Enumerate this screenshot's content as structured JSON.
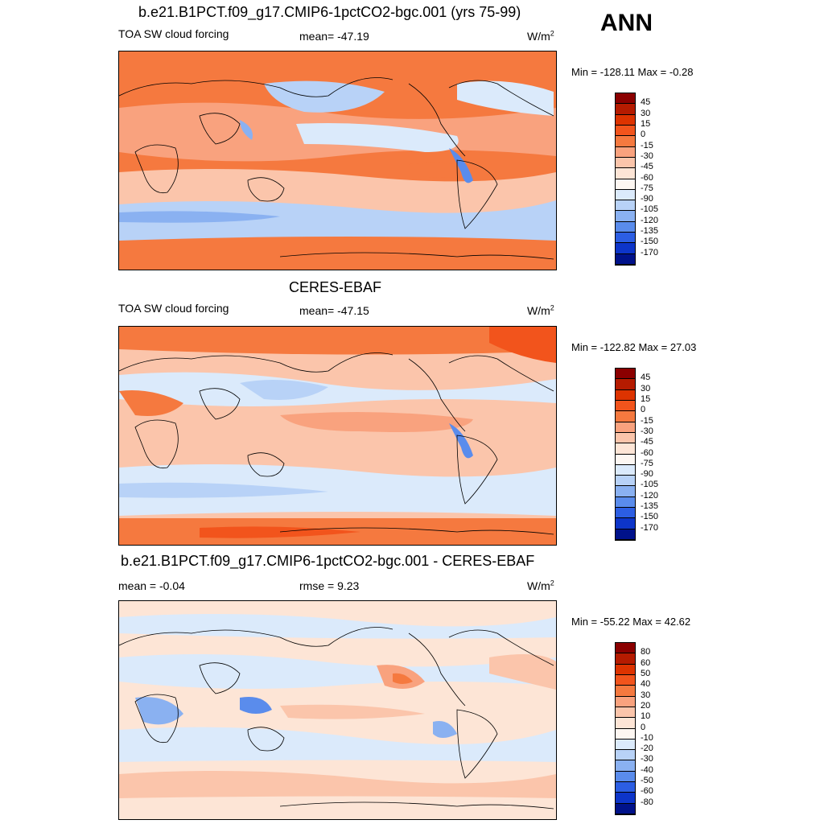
{
  "season": "ANN",
  "units_base": "W/m",
  "units_exp": "2",
  "panels": [
    {
      "title": "b.e21.B1PCT.f09_g17.CMIP6-1pctCO2-bgc.001 (yrs 75-99)",
      "left_label": "TOA SW cloud forcing",
      "center_label": "mean= -47.19",
      "minmax": "Min = -128.11 Max =  -0.28"
    },
    {
      "title": "CERES-EBAF",
      "left_label": "TOA SW cloud forcing",
      "center_label": "mean= -47.15",
      "minmax": "Min = -122.82 Max =  27.03"
    },
    {
      "title": "b.e21.B1PCT.f09_g17.CMIP6-1pctCO2-bgc.001 - CERES-EBAF",
      "left_label": "mean =  -0.04",
      "center_label": "rmse =   9.23",
      "minmax": "Min = -55.22 Max =  42.62"
    }
  ],
  "colorbars": {
    "field": {
      "labels": [
        "45",
        "30",
        "15",
        "0",
        "-15",
        "-30",
        "-45",
        "-60",
        "-75",
        "-90",
        "-105",
        "-120",
        "-135",
        "-150",
        "-170"
      ],
      "colors": [
        "#8b0000",
        "#b51b00",
        "#dd3300",
        "#f2541c",
        "#f5793f",
        "#f9a27e",
        "#fbc5ab",
        "#fde5d6",
        "#fdf7f2",
        "#dbeafb",
        "#b8d2f7",
        "#8ab1f1",
        "#5a8cec",
        "#2c5ee3",
        "#0d35c9",
        "#00128a"
      ]
    },
    "diff": {
      "labels": [
        "80",
        "60",
        "50",
        "40",
        "30",
        "20",
        "10",
        "0",
        "-10",
        "-20",
        "-30",
        "-40",
        "-50",
        "-60",
        "-80"
      ],
      "colors": [
        "#8b0000",
        "#b51b00",
        "#dd3300",
        "#f2541c",
        "#f5793f",
        "#f9a27e",
        "#fbc5ab",
        "#fde5d6",
        "#fdf7f2",
        "#dbeafb",
        "#b8d2f7",
        "#8ab1f1",
        "#5a8cec",
        "#2c5ee3",
        "#0d35c9",
        "#00128a"
      ]
    }
  }
}
